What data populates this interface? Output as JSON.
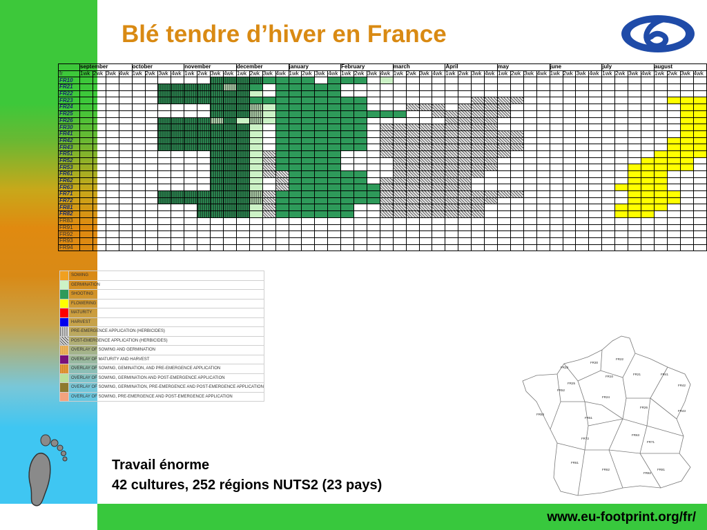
{
  "title": "Blé tendre d’hiver en France",
  "footer_url": "www.eu-footprint.org/fr/",
  "caption": {
    "line1": "Travail énorme",
    "line2": "42 cultures, 252 régions NUTS2 (23 pays)"
  },
  "grid": {
    "corner_label": "fr",
    "months": [
      "september",
      "october",
      "november",
      "december",
      "january",
      "February",
      "march",
      "April",
      "may",
      "june",
      "july",
      "august"
    ],
    "weeks": [
      "1wk",
      "2wk",
      "3wk",
      "4wk"
    ],
    "regions": [
      {
        "name": "FR10",
        "bold": true,
        "cells": "..........PPPPSSSS.SSS.G..........................FFF..........MMHHH.HH.."
      },
      {
        "name": "FR21",
        "bold": true,
        "cells": "......PPPPPEPS.SSSSS.............................FFF..........MMHHH.HH.."
      },
      {
        "name": "FR22",
        "bold": true,
        "cells": "......PPPPPPPG.SSSSS.........................................MMMMHHHHH.."
      },
      {
        "name": "FR23",
        "bold": true,
        "cells": "......PPPPPPPSSSSSSSSS........QQQQ...........FFFF............MMMMHHHHH.."
      },
      {
        "name": "FR24",
        "bold": true,
        "cells": "..........PPPEGSSSSSSS...QQQ.QQQQ.............FFFF.........MMMHHH......"
      },
      {
        "name": "FR25",
        "bold": true,
        "cells": "..........PPPEGSSSSSSSSSS..QQQQQQ.............FF...........MMMHHH......"
      },
      {
        "name": "FR26",
        "bold": true,
        "cells": "......PPPPEPGEGSSSSSSS......QQQQ..............FF............MMMMHH....."
      },
      {
        "name": "FR30",
        "bold": true,
        "cells": "......PPPPPPPG.SSSSSSS.QQQQQQQQQ..............FF..........MMMMHHHH....."
      },
      {
        "name": "FR41",
        "bold": true,
        "cells": "......PPPPPPPG.SSSSSSS.QQQQQQQQQQQ............FF..........MMMHH......"
      },
      {
        "name": "FR42",
        "bold": true,
        "cells": "......PPPPPPPG.SSSSSSS.QQQQQQQQQQQ...........FFF..........MMMHH......"
      },
      {
        "name": "FR43",
        "bold": true,
        "cells": "......PPPPPPPG.SSSSSSS.QQQQQQQQQQQ...........FFF.........MMMHH......."
      },
      {
        "name": "FR51",
        "bold": true,
        "cells": "..........PPPGQSSSSS...QQQQQQQQQQ...........FFFF........MMMMMH......."
      },
      {
        "name": "FR52",
        "bold": true,
        "cells": "..........PPPGQSSSSS....QQQQQQQQ...........FFFF.........MMMMHH......."
      },
      {
        "name": "FR53",
        "bold": true,
        "cells": "..........PPPGQSSSSS....QQQQQQQQ..........FFFFF......MMMMHHHH........"
      },
      {
        "name": "FR61",
        "bold": true,
        "cells": "..........PPPGQQSSSSSS..QQQQQQQ...........FFF.....MMMHH............."
      },
      {
        "name": "FR62",
        "bold": true,
        "cells": "..........PPPG.QSSSSSS.QQQQQQQ............FFF.....MMMHH............."
      },
      {
        "name": "FR63",
        "bold": true,
        "cells": "..........PPPG.QSSSSSSSQQQQQQQ...........FFFF.....MMMHH............."
      },
      {
        "name": "FR71",
        "bold": true,
        "cells": "......PPPPPPPEQSSSSSSSSQQQQQQQQQQQ........FFFF......MMHHH............"
      },
      {
        "name": "FR72",
        "bold": true,
        "cells": "......PPPPPPPEQSSSSSSSSQQQQQQQQQ..........FFFF......MMHHH............"
      },
      {
        "name": "FR81",
        "bold": true,
        "cells": ".........PPPPGQSSSSSS..QQQQQQQQ..........FFFF.......MMHH............."
      },
      {
        "name": "FR82",
        "bold": true,
        "cells": ".........PPPPGQSSSSSS..QQQQQQQQ..........FFF.....MMMMHHH............."
      },
      {
        "name": "FR83",
        "bold": false,
        "cells": ""
      },
      {
        "name": "FR91",
        "bold": false,
        "cells": ""
      },
      {
        "name": "FR92",
        "bold": false,
        "cells": ""
      },
      {
        "name": "FR93",
        "bold": false,
        "cells": ""
      },
      {
        "name": "FR94",
        "bold": false,
        "cells": ""
      }
    ]
  },
  "legend": {
    "items": [
      {
        "label": "SOWING",
        "swatch": "sow"
      },
      {
        "label": "GERMINATION",
        "swatch": "germ"
      },
      {
        "label": "SHOOTING",
        "swatch": "shoot"
      },
      {
        "label": "FLOWERING",
        "swatch": "flow"
      },
      {
        "label": "MATURITY",
        "swatch": "mat"
      },
      {
        "label": "HARVEST",
        "swatch": "harv"
      },
      {
        "label": "PRE-EMERGENCE APPLICATION (HERBICIDES)",
        "swatch": "pre"
      },
      {
        "label": "POST-EMERGENCE APPLICATION (HERBICIDES)",
        "swatch": "post"
      },
      {
        "label": "OVERLAY OF SOWING AND GERMINATION",
        "swatch": "ov1"
      },
      {
        "label": "OVERLAY OF MATURITY AND HARVEST",
        "swatch": "ov2"
      },
      {
        "label": "OVERLAY OF SOWING, GEMINATION, AND PRE-EMERGENCE APPLICATION",
        "swatch": "ov3"
      },
      {
        "label": "OVERLAY OF SOWING, GERMINATION AND POST-EMERGENCE APPLICATION",
        "swatch": "ov4"
      },
      {
        "label": "OVERLAY OF SOWING, GERMINATION, PRE-EMERGENCE AND POST-EMERGENCE APPLICATION",
        "swatch": "ov5"
      },
      {
        "label": "OVERLAY OF SOWING, PRE-EMERGENCE AND POST-EMERGENCE APPLICATION",
        "swatch": "ov6"
      }
    ]
  },
  "map": {
    "region_labels": [
      "FR30",
      "FR22",
      "FR23",
      "FR21",
      "FR10",
      "FR41",
      "FR42",
      "FR25",
      "FR24",
      "FR26",
      "FR43",
      "FR52",
      "FR51",
      "FR53",
      "FR63",
      "FR72",
      "FR71",
      "FR61",
      "FR81",
      "FR62",
      "FR82"
    ]
  }
}
